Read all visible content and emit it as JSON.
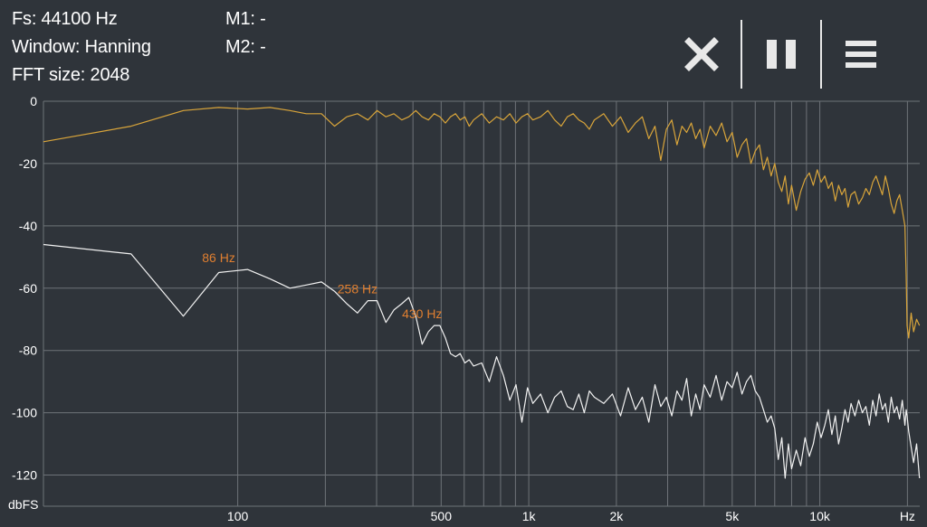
{
  "info": {
    "fs": "Fs: 44100 Hz",
    "window": "Window: Hanning",
    "fft_size": "FFT size: 2048",
    "m1": "M1: -",
    "m2": "M2: -"
  },
  "toolbar": {
    "close_icon": "close-icon",
    "pause_icon": "pause-icon",
    "menu_icon": "menu-icon"
  },
  "colors": {
    "background": "#2f343a",
    "grid": "#6e7378",
    "series_current": "#d9a53a",
    "series_peak_hold": "#f2f2f2",
    "peak_label": "#e07f30"
  },
  "chart_data": {
    "type": "line",
    "xscale": "log",
    "xlim": [
      21.5,
      22050
    ],
    "ylim": [
      -130,
      0
    ],
    "ylabel": "dbFS",
    "xlabel": "Hz",
    "y_ticks": [
      0,
      -20,
      -40,
      -60,
      -80,
      -100,
      -120
    ],
    "x_tick_labels": [
      {
        "value": 100,
        "label": "100"
      },
      {
        "value": 500,
        "label": "500"
      },
      {
        "value": 1000,
        "label": "1k"
      },
      {
        "value": 2000,
        "label": "2k"
      },
      {
        "value": 5000,
        "label": "5k"
      },
      {
        "value": 10000,
        "label": "10k"
      },
      {
        "value": 20000,
        "label": "Hz"
      }
    ],
    "x_gridlines": [
      100,
      200,
      300,
      400,
      500,
      600,
      700,
      800,
      900,
      1000,
      2000,
      3000,
      4000,
      5000,
      6000,
      7000,
      8000,
      9000,
      10000,
      20000
    ],
    "series": [
      {
        "color": "#d9a53a",
        "x": [
          21.5,
          43,
          65,
          86,
          108,
          129,
          151,
          172,
          194,
          215,
          237,
          258,
          280,
          301,
          323,
          344,
          366,
          387,
          409,
          430,
          452,
          473,
          495,
          517,
          538,
          560,
          581,
          603,
          624,
          646,
          689,
          732,
          775,
          818,
          861,
          904,
          947,
          990,
          1033,
          1098,
          1163,
          1227,
          1292,
          1357,
          1421,
          1486,
          1551,
          1615,
          1680,
          1809,
          1938,
          2067,
          2196,
          2325,
          2455,
          2584,
          2713,
          2842,
          2971,
          3100,
          3230,
          3359,
          3488,
          3617,
          3746,
          3876,
          4005,
          4200,
          4400,
          4600,
          4800,
          5000,
          5200,
          5400,
          5600,
          5800,
          6000,
          6200,
          6400,
          6600,
          6800,
          7000,
          7200,
          7400,
          7600,
          7800,
          8000,
          8300,
          8600,
          8900,
          9200,
          9500,
          9800,
          10100,
          10400,
          10700,
          11000,
          11300,
          11600,
          11900,
          12200,
          12500,
          12800,
          13200,
          13600,
          14000,
          14400,
          14800,
          15200,
          15600,
          16000,
          16400,
          16800,
          17200,
          17600,
          18000,
          18400,
          18800,
          19200,
          19600,
          19800,
          19950,
          20200,
          20600,
          21000,
          21500,
          22000
        ],
        "y": [
          -13,
          -8,
          -3,
          -2,
          -2.5,
          -2,
          -3,
          -4,
          -4,
          -8,
          -5,
          -4,
          -6,
          -3,
          -5,
          -4,
          -6,
          -5,
          -3,
          -5,
          -6,
          -4,
          -5,
          -7,
          -5,
          -4,
          -6,
          -5,
          -8,
          -6,
          -4,
          -7,
          -5,
          -6,
          -4,
          -7,
          -5,
          -4,
          -6,
          -5,
          -3,
          -6,
          -8,
          -5,
          -4,
          -6,
          -7,
          -9,
          -6,
          -4,
          -8,
          -5,
          -10,
          -7,
          -5,
          -12,
          -8,
          -19,
          -9,
          -6,
          -14,
          -8,
          -10,
          -7,
          -12,
          -9,
          -15,
          -8,
          -11,
          -7,
          -13,
          -10,
          -18,
          -14,
          -12,
          -20,
          -16,
          -14,
          -22,
          -18,
          -24,
          -20,
          -26,
          -29,
          -24,
          -33,
          -27,
          -35,
          -29,
          -25,
          -23,
          -27,
          -22,
          -26,
          -24,
          -28,
          -26,
          -32,
          -27,
          -30,
          -28,
          -34,
          -30,
          -29,
          -33,
          -31,
          -28,
          -30,
          -26,
          -24,
          -27,
          -30,
          -24,
          -28,
          -33,
          -36,
          -32,
          -30,
          -35,
          -40,
          -56,
          -72,
          -76,
          -68,
          -74,
          -70,
          -72
        ],
        "label": ""
      },
      {
        "color": "#f2f2f2",
        "x": [
          21.5,
          43,
          65,
          86,
          108,
          129,
          151,
          172,
          194,
          215,
          237,
          258,
          280,
          301,
          323,
          344,
          366,
          387,
          409,
          430,
          452,
          473,
          495,
          517,
          538,
          560,
          581,
          603,
          624,
          646,
          689,
          732,
          775,
          818,
          861,
          904,
          947,
          990,
          1033,
          1098,
          1163,
          1227,
          1292,
          1357,
          1421,
          1486,
          1551,
          1615,
          1680,
          1809,
          1938,
          2067,
          2196,
          2325,
          2455,
          2584,
          2713,
          2842,
          2971,
          3100,
          3230,
          3359,
          3488,
          3617,
          3746,
          3876,
          4005,
          4200,
          4400,
          4600,
          4800,
          5000,
          5200,
          5400,
          5600,
          5800,
          6000,
          6200,
          6400,
          6600,
          6800,
          7000,
          7200,
          7400,
          7600,
          7800,
          8000,
          8300,
          8600,
          8900,
          9200,
          9500,
          9800,
          10100,
          10400,
          10700,
          11000,
          11300,
          11600,
          11900,
          12200,
          12500,
          12800,
          13200,
          13600,
          14000,
          14400,
          14800,
          15200,
          15600,
          16000,
          16400,
          16800,
          17200,
          17600,
          18000,
          18400,
          18800,
          19200,
          19600,
          19800,
          19950,
          20200,
          20600,
          21000,
          21500,
          22000
        ],
        "y": [
          -46,
          -49,
          -69,
          -55,
          -54,
          -57,
          -60,
          -59,
          -58,
          -61,
          -65,
          -68,
          -64,
          -64,
          -71,
          -67,
          -65,
          -63,
          -69,
          -78,
          -74,
          -72,
          -72,
          -76,
          -81,
          -82,
          -81,
          -84,
          -83,
          -85,
          -84,
          -90,
          -82,
          -88,
          -96,
          -91,
          -103,
          -92,
          -97,
          -94,
          -100,
          -95,
          -93,
          -98,
          -99,
          -94,
          -100,
          -93,
          -95,
          -97,
          -94,
          -101,
          -92,
          -99,
          -95,
          -103,
          -91,
          -98,
          -95,
          -101,
          -93,
          -96,
          -89,
          -101,
          -94,
          -99,
          -91,
          -95,
          -88,
          -96,
          -90,
          -92,
          -87,
          -94,
          -90,
          -88,
          -93,
          -95,
          -99,
          -103,
          -101,
          -105,
          -115,
          -108,
          -121,
          -110,
          -118,
          -112,
          -117,
          -108,
          -114,
          -110,
          -103,
          -108,
          -104,
          -99,
          -107,
          -101,
          -110,
          -105,
          -99,
          -103,
          -97,
          -101,
          -96,
          -100,
          -98,
          -104,
          -96,
          -101,
          -94,
          -99,
          -97,
          -103,
          -95,
          -100,
          -98,
          -102,
          -96,
          -104,
          -99,
          -101,
          -106,
          -111,
          -116,
          -110,
          -121
        ],
        "label": ""
      }
    ],
    "peak_labels": [
      {
        "x": 86,
        "y": -54,
        "label": "86 Hz"
      },
      {
        "x": 258,
        "y": -64,
        "label": "258 Hz"
      },
      {
        "x": 430,
        "y": -72,
        "label": "430 Hz"
      }
    ],
    "grid": true,
    "legend": "none"
  }
}
